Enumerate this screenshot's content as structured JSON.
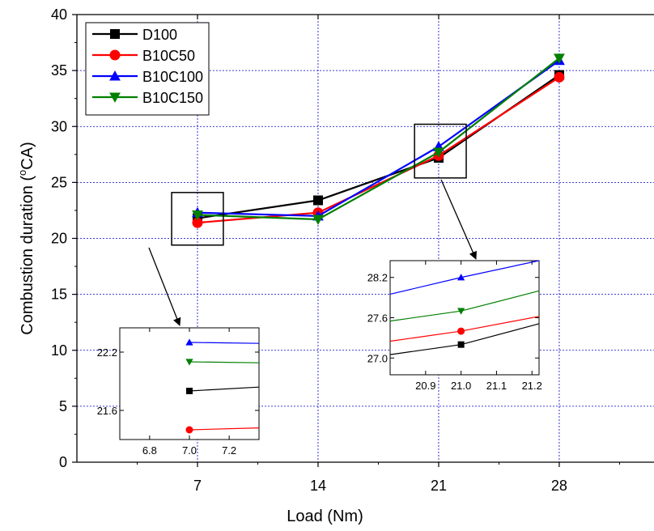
{
  "chart_data": [
    {
      "type": "line",
      "xlabel": "Load (Nm)",
      "ylabel": "Combustion duration (",
      "ylabel_sup": "o",
      "ylabel_tail": "CA)",
      "xlim": [
        0,
        33.5
      ],
      "ylim": [
        0,
        40
      ],
      "xticks": [
        7,
        14,
        21,
        28
      ],
      "yticks": [
        0,
        5,
        10,
        15,
        20,
        25,
        30,
        35,
        40
      ],
      "grid": true,
      "legend_position": "top-left",
      "x": [
        7,
        14,
        21,
        28
      ],
      "series": [
        {
          "name": "D100",
          "values": [
            21.8,
            23.4,
            27.2,
            34.6
          ],
          "color": "#000000",
          "marker": "square"
        },
        {
          "name": "B10C50",
          "values": [
            21.4,
            22.3,
            27.4,
            34.4
          ],
          "color": "#ff0000",
          "marker": "circle"
        },
        {
          "name": "B10C100",
          "values": [
            22.3,
            22.0,
            28.2,
            35.9
          ],
          "color": "#0000ff",
          "marker": "triangle-up"
        },
        {
          "name": "B10C150",
          "values": [
            22.1,
            21.7,
            27.7,
            36.1
          ],
          "color": "#008000",
          "marker": "triangle-down"
        }
      ]
    },
    {
      "type": "line",
      "role": "inset-zoom",
      "xlim": [
        6.65,
        7.35
      ],
      "ylim": [
        21.3,
        22.45
      ],
      "xticks": [
        6.8,
        7.0,
        7.2
      ],
      "xtick_labels": [
        "6.8",
        "7.0",
        "7.2"
      ],
      "yticks": [
        21.6,
        22.2
      ],
      "ytick_labels": [
        "21.6",
        "22.2"
      ],
      "series": [
        {
          "name": "D100",
          "x": [
            7.0,
            7.35
          ],
          "values": [
            21.8,
            21.84
          ],
          "color": "#000000",
          "marker": "square"
        },
        {
          "name": "B10C50",
          "x": [
            7.0,
            7.35
          ],
          "values": [
            21.4,
            21.42
          ],
          "color": "#ff0000",
          "marker": "circle"
        },
        {
          "name": "B10C100",
          "x": [
            7.0,
            7.35
          ],
          "values": [
            22.3,
            22.29
          ],
          "color": "#0000ff",
          "marker": "triangle-up"
        },
        {
          "name": "B10C150",
          "x": [
            7.0,
            7.35
          ],
          "values": [
            22.1,
            22.09
          ],
          "color": "#008000",
          "marker": "triangle-down"
        }
      ]
    },
    {
      "type": "line",
      "role": "inset-zoom",
      "xlim": [
        20.8,
        21.22
      ],
      "ylim": [
        26.75,
        28.45
      ],
      "xticks": [
        20.9,
        21.0,
        21.1,
        21.2
      ],
      "xtick_labels": [
        "20.9",
        "21.0",
        "21.1",
        "21.2"
      ],
      "yticks": [
        27.0,
        27.6,
        28.2
      ],
      "ytick_labels": [
        "27.0",
        "27.6",
        "28.2"
      ],
      "series": [
        {
          "name": "D100",
          "x": [
            20.8,
            21.0,
            21.22
          ],
          "values": [
            27.05,
            27.2,
            27.51
          ],
          "color": "#000000",
          "marker": "square"
        },
        {
          "name": "B10C50",
          "x": [
            20.8,
            21.0,
            21.22
          ],
          "values": [
            27.25,
            27.4,
            27.62
          ],
          "color": "#ff0000",
          "marker": "circle"
        },
        {
          "name": "B10C100",
          "x": [
            20.8,
            21.0,
            21.22
          ],
          "values": [
            27.95,
            28.2,
            28.45
          ],
          "color": "#0000ff",
          "marker": "triangle-up"
        },
        {
          "name": "B10C150",
          "x": [
            20.8,
            21.0,
            21.22
          ],
          "values": [
            27.55,
            27.7,
            28.0
          ],
          "color": "#008000",
          "marker": "triangle-down"
        }
      ]
    }
  ]
}
